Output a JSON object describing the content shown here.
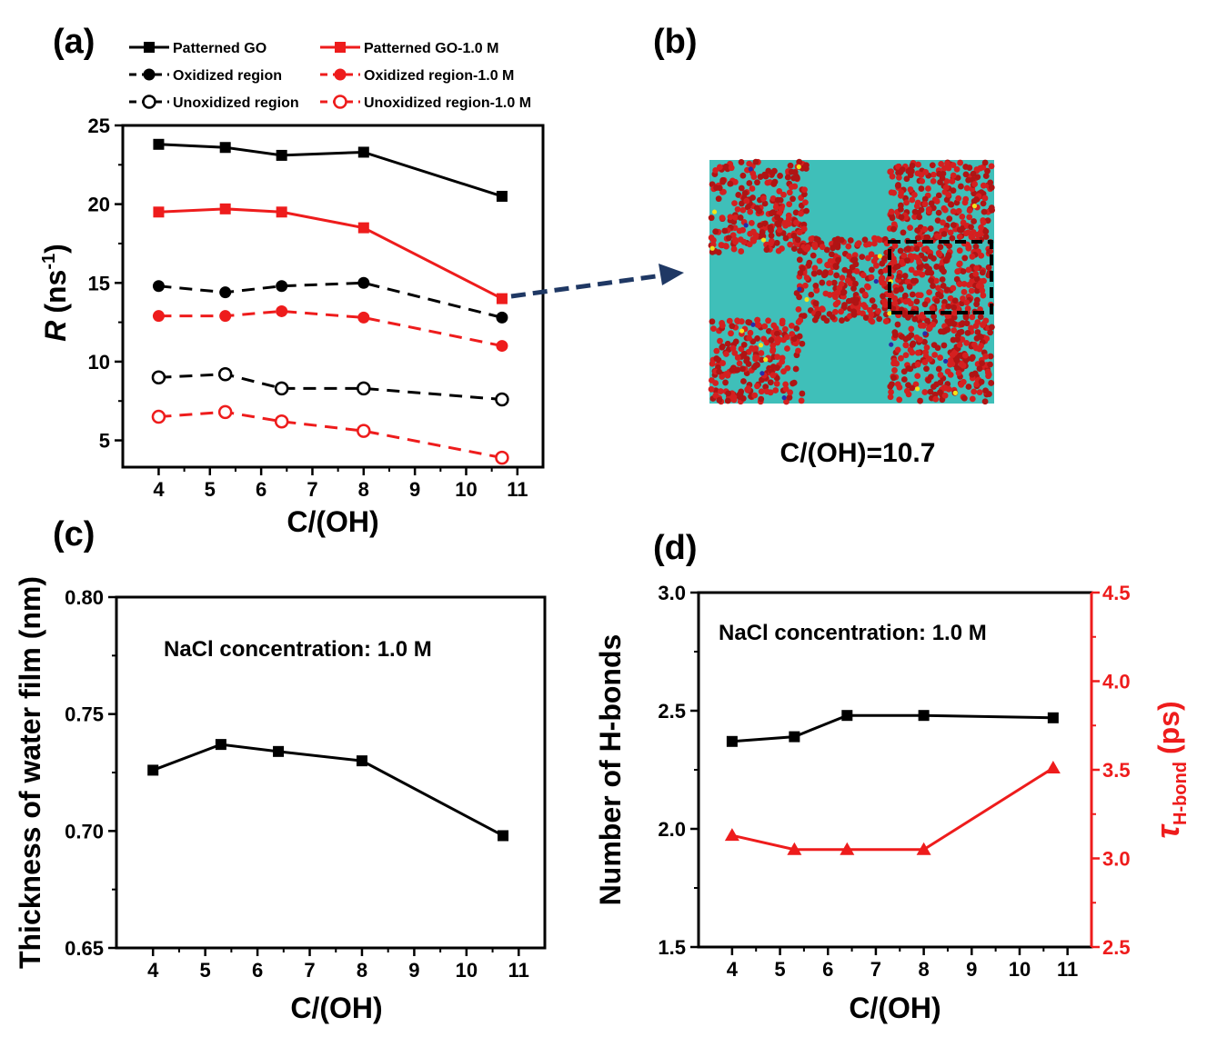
{
  "colors": {
    "black": "#000000",
    "red": "#ee1c1c",
    "teal": "#3fbfb9",
    "arrow": "#1f3864",
    "atom": "#d42020"
  },
  "chart_data": [
    {
      "panel": "(a)",
      "type": "line",
      "xlabel": "C/(OH)",
      "ylabel": "R (ns-1)",
      "ylabel_main": "R",
      "ylabel_unit": "(ns",
      "ylabel_sup": "-1",
      "ylabel_close": ")",
      "xlim": [
        3.3,
        11.5
      ],
      "ylim": [
        3.3,
        25
      ],
      "xticks": [
        4,
        5,
        6,
        7,
        8,
        9,
        10,
        11
      ],
      "yticks": [
        5,
        10,
        15,
        20,
        25
      ],
      "legend_position": "top",
      "series": [
        {
          "name": "Patterned GO",
          "color": "#000000",
          "marker": "square",
          "dashed": false,
          "x": [
            4,
            5.3,
            6.4,
            8,
            10.7
          ],
          "y": [
            23.8,
            23.6,
            23.1,
            23.3,
            20.5
          ]
        },
        {
          "name": "Oxidized region",
          "color": "#000000",
          "marker": "circle",
          "dashed": true,
          "x": [
            4,
            5.3,
            6.4,
            8,
            10.7
          ],
          "y": [
            14.8,
            14.4,
            14.8,
            15.0,
            12.8
          ]
        },
        {
          "name": "Unoxidized region",
          "color": "#000000",
          "marker": "open-circle",
          "dashed": true,
          "x": [
            4,
            5.3,
            6.4,
            8,
            10.7
          ],
          "y": [
            9.0,
            9.2,
            8.3,
            8.3,
            7.6
          ]
        },
        {
          "name": "Patterned GO-1.0 M",
          "color": "#ee1c1c",
          "marker": "square",
          "dashed": false,
          "x": [
            4,
            5.3,
            6.4,
            8,
            10.7
          ],
          "y": [
            19.5,
            19.7,
            19.5,
            18.5,
            14.0
          ]
        },
        {
          "name": "Oxidized region-1.0 M",
          "color": "#ee1c1c",
          "marker": "circle",
          "dashed": true,
          "x": [
            4,
            5.3,
            6.4,
            8,
            10.7
          ],
          "y": [
            12.9,
            12.9,
            13.2,
            12.8,
            11.0
          ]
        },
        {
          "name": "Unoxidized region-1.0 M",
          "color": "#ee1c1c",
          "marker": "open-circle",
          "dashed": true,
          "x": [
            4,
            5.3,
            6.4,
            8,
            10.7
          ],
          "y": [
            6.5,
            6.8,
            6.2,
            5.6,
            3.9
          ]
        }
      ]
    },
    {
      "panel": "(b)",
      "type": "image",
      "caption": "C/(OH)=10.7"
    },
    {
      "panel": "(c)",
      "type": "line",
      "xlabel": "C/(OH)",
      "ylabel": "Thickness of water film (nm)",
      "annotation": "NaCl concentration: 1.0 M",
      "xlim": [
        3.3,
        11.5
      ],
      "ylim": [
        0.65,
        0.8
      ],
      "xticks": [
        4,
        5,
        6,
        7,
        8,
        9,
        10,
        11
      ],
      "yticks": [
        0.65,
        0.7,
        0.75,
        0.8
      ],
      "ytick_labels": [
        "0.65",
        "0.70",
        "0.75",
        "0.80"
      ],
      "series": [
        {
          "color": "#000000",
          "marker": "square",
          "x": [
            4,
            5.3,
            6.4,
            8,
            10.7
          ],
          "y": [
            0.726,
            0.737,
            0.734,
            0.73,
            0.698
          ]
        }
      ]
    },
    {
      "panel": "(d)",
      "type": "line",
      "xlabel": "C/(OH)",
      "ylabel": "Number of H-bonds",
      "ylabel_right_symbol": "τ",
      "ylabel_right_sub": "H-bond",
      "ylabel_right_unit": "(ps)",
      "annotation": "NaCl concentration: 1.0 M",
      "xlim": [
        3.3,
        11.5
      ],
      "ylim": [
        1.5,
        3.0
      ],
      "ylim_right": [
        2.5,
        4.5
      ],
      "xticks": [
        4,
        5,
        6,
        7,
        8,
        9,
        10,
        11
      ],
      "yticks": [
        1.5,
        2.0,
        2.5,
        3.0
      ],
      "ytick_labels": [
        "1.5",
        "2.0",
        "2.5",
        "3.0"
      ],
      "yticks_right": [
        2.5,
        3.0,
        3.5,
        4.0,
        4.5
      ],
      "ytick_labels_right": [
        "2.5",
        "3.0",
        "3.5",
        "4.0",
        "4.5"
      ],
      "series": [
        {
          "color": "#000000",
          "marker": "square",
          "axis": "left",
          "x": [
            4,
            5.3,
            6.4,
            8,
            10.7
          ],
          "y": [
            2.37,
            2.39,
            2.48,
            2.48,
            2.47
          ]
        },
        {
          "color": "#ee1c1c",
          "marker": "triangle",
          "axis": "right",
          "x": [
            4,
            5.3,
            6.4,
            8,
            10.7
          ],
          "y": [
            3.13,
            3.05,
            3.05,
            3.05,
            3.51
          ]
        }
      ]
    }
  ]
}
